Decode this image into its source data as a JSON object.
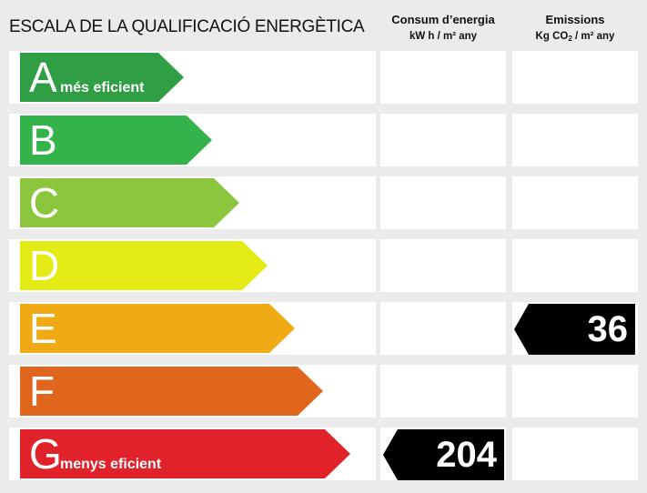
{
  "header": {
    "title": "ESCALA DE LA QUALIFICACIÓ ENERGÈTICA",
    "energy_title": "Consum d’energia",
    "energy_unit": "kW h / m² any",
    "emissions_title": "Emissions",
    "emissions_unit_pre": "Kg CO",
    "emissions_unit_sub": "2",
    "emissions_unit_post": " / m² any"
  },
  "rows": [
    {
      "letter": "A",
      "desc": "més eficient",
      "color": "#2f9e44"
    },
    {
      "letter": "B",
      "desc": "",
      "color": "#33b34a"
    },
    {
      "letter": "C",
      "desc": "",
      "color": "#8cc63f"
    },
    {
      "letter": "D",
      "desc": "",
      "color": "#e4ea14"
    },
    {
      "letter": "E",
      "desc": "",
      "color": "#f0aa14"
    },
    {
      "letter": "F",
      "desc": "",
      "color": "#e0661e"
    },
    {
      "letter": "G",
      "desc": "menys eficient",
      "color": "#e2222a"
    }
  ],
  "ratings": {
    "energy": {
      "letter": "G",
      "value": "204"
    },
    "emissions": {
      "letter": "E",
      "value": "36"
    }
  }
}
